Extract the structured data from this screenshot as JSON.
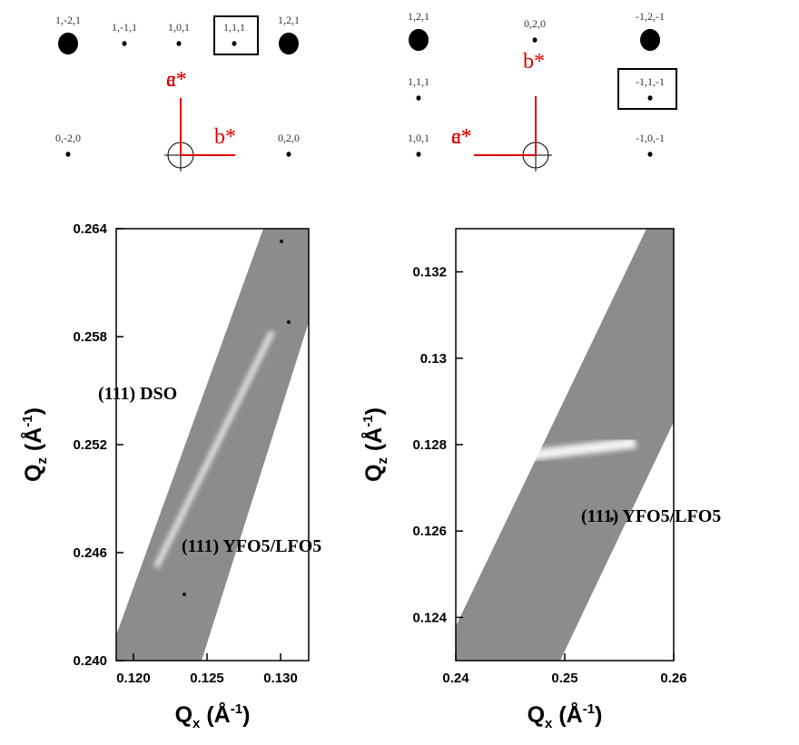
{
  "diagrams": [
    {
      "nodes": [
        {
          "label": "1,-2,1"
        },
        {
          "label": "1,-1,1"
        },
        {
          "label": "1,0,1"
        },
        {
          "label": "1,1,1"
        },
        {
          "label": "1,2,1"
        },
        {
          "label": "0,-2,0"
        },
        {
          "label": "0,2,0"
        }
      ],
      "vertical": [
        "c*",
        "a*"
      ],
      "horizontal": [
        "b*"
      ]
    },
    {
      "nodes": [
        {
          "label": "1,2,1"
        },
        {
          "label": "0,2,0"
        },
        {
          "label": "-1,2,-1"
        },
        {
          "label": "1,1,1"
        },
        {
          "label": "-1,1,-1"
        },
        {
          "label": "1,0,1"
        },
        {
          "label": "-1,0,-1"
        }
      ],
      "vertical": [
        "b*"
      ],
      "horizontal": [
        "c*",
        "a*"
      ]
    }
  ],
  "chart_data": [
    {
      "type": "map",
      "xlim": [
        0.11883,
        0.13191
      ],
      "ylim": [
        0.24,
        0.264
      ],
      "xticks": [
        {
          "value": 0.12,
          "label": "0.120"
        },
        {
          "value": 0.125,
          "label": "0.125"
        },
        {
          "value": 0.13,
          "label": "0.130"
        }
      ],
      "yticks": [
        {
          "value": 0.24,
          "label": "0.240"
        },
        {
          "value": 0.246,
          "label": "0.246"
        },
        {
          "value": 0.252,
          "label": "0.252"
        },
        {
          "value": 0.258,
          "label": "0.258"
        },
        {
          "value": 0.264,
          "label": "0.264"
        }
      ],
      "x_label": [
        "Q",
        "x",
        " (Å",
        "-1",
        ")"
      ],
      "y_label": [
        "Q",
        "z",
        " (Å",
        "-1",
        ")"
      ],
      "annotations": [
        "(111) DSO",
        "(111) YFO5/LFO5"
      ]
    },
    {
      "type": "map",
      "xlim": [
        0.24,
        0.26
      ],
      "ylim": [
        0.123,
        0.133
      ],
      "xticks": [
        0.24,
        0.25,
        0.26
      ],
      "yticks": [
        0.124,
        0.126,
        0.128,
        0.13,
        0.132
      ],
      "x_label": [
        "Q",
        "x",
        " (Å",
        "-1",
        ")"
      ],
      "y_label": [
        "Q",
        "z",
        " (Å",
        "-1",
        ")"
      ],
      "annotations": [
        "(111) YFO5/LFO5"
      ]
    }
  ]
}
